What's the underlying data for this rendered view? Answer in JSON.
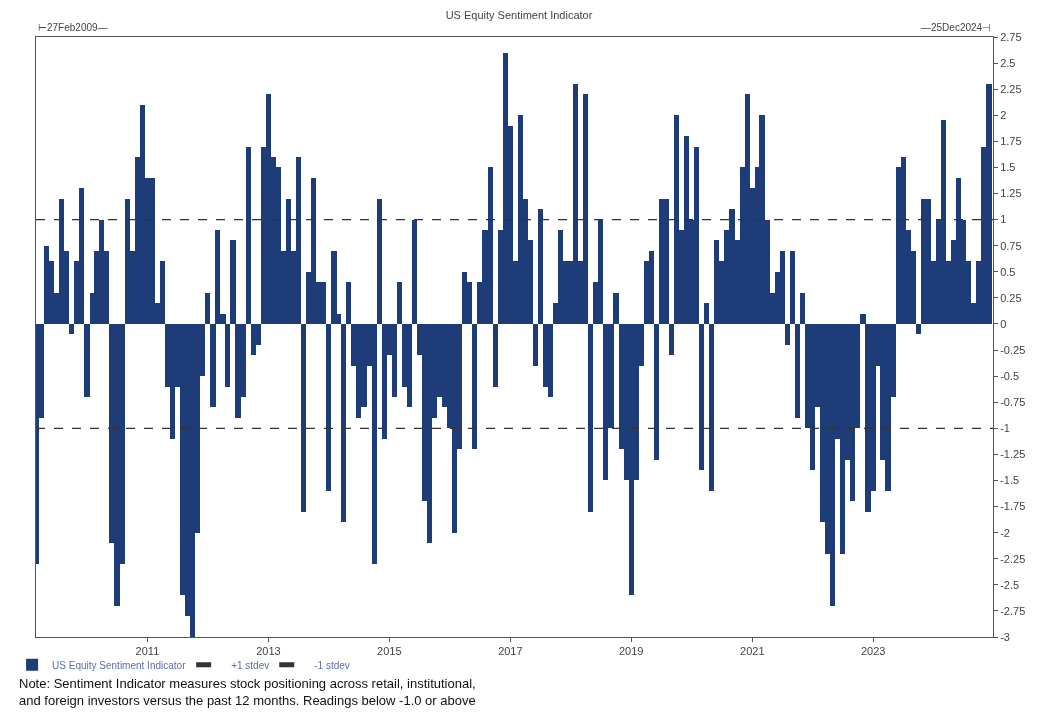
{
  "chart_data": {
    "type": "bar",
    "title": "US Equity Sentiment Indicator",
    "x": [
      "2009-03",
      "2009-04",
      "2009-05",
      "2009-06",
      "2009-07",
      "2009-08",
      "2009-09",
      "2009-10",
      "2009-11",
      "2009-12",
      "2010-01",
      "2010-02",
      "2010-03",
      "2010-04",
      "2010-05",
      "2010-06",
      "2010-07",
      "2010-08",
      "2010-09",
      "2010-10",
      "2010-11",
      "2010-12",
      "2011-01",
      "2011-02",
      "2011-03",
      "2011-04",
      "2011-05",
      "2011-06",
      "2011-07",
      "2011-08",
      "2011-09",
      "2011-10",
      "2011-11",
      "2011-12",
      "2012-01",
      "2012-02",
      "2012-03",
      "2012-04",
      "2012-05",
      "2012-06",
      "2012-07",
      "2012-08",
      "2012-09",
      "2012-10",
      "2012-11",
      "2012-12",
      "2013-01",
      "2013-02",
      "2013-03",
      "2013-04",
      "2013-05",
      "2013-06",
      "2013-07",
      "2013-08",
      "2013-09",
      "2013-10",
      "2013-11",
      "2013-12",
      "2014-01",
      "2014-02",
      "2014-03",
      "2014-04",
      "2014-05",
      "2014-06",
      "2014-07",
      "2014-08",
      "2014-09",
      "2014-10",
      "2014-11",
      "2014-12",
      "2015-01",
      "2015-02",
      "2015-03",
      "2015-04",
      "2015-05",
      "2015-06",
      "2015-07",
      "2015-08",
      "2015-09",
      "2015-10",
      "2015-11",
      "2015-12",
      "2016-01",
      "2016-02",
      "2016-03",
      "2016-04",
      "2016-05",
      "2016-06",
      "2016-07",
      "2016-08",
      "2016-09",
      "2016-10",
      "2016-11",
      "2016-12",
      "2017-01",
      "2017-02",
      "2017-03",
      "2017-04",
      "2017-05",
      "2017-06",
      "2017-07",
      "2017-08",
      "2017-09",
      "2017-10",
      "2017-11",
      "2017-12",
      "2018-01",
      "2018-02",
      "2018-03",
      "2018-04",
      "2018-05",
      "2018-06",
      "2018-07",
      "2018-08",
      "2018-09",
      "2018-10",
      "2018-11",
      "2018-12",
      "2019-01",
      "2019-02",
      "2019-03",
      "2019-04",
      "2019-05",
      "2019-06",
      "2019-07",
      "2019-08",
      "2019-09",
      "2019-10",
      "2019-11",
      "2019-12",
      "2020-01",
      "2020-02",
      "2020-03",
      "2020-04",
      "2020-05",
      "2020-06",
      "2020-07",
      "2020-08",
      "2020-09",
      "2020-10",
      "2020-11",
      "2020-12",
      "2021-01",
      "2021-02",
      "2021-03",
      "2021-04",
      "2021-05",
      "2021-06",
      "2021-07",
      "2021-08",
      "2021-09",
      "2021-10",
      "2021-11",
      "2021-12",
      "2022-01",
      "2022-02",
      "2022-03",
      "2022-04",
      "2022-05",
      "2022-06",
      "2022-07",
      "2022-08",
      "2022-09",
      "2022-10",
      "2022-11",
      "2022-12",
      "2023-01",
      "2023-02",
      "2023-03",
      "2023-04",
      "2023-05",
      "2023-06",
      "2023-07",
      "2023-08",
      "2023-09",
      "2023-10",
      "2023-11",
      "2023-12",
      "2024-01",
      "2024-02",
      "2024-03",
      "2024-04",
      "2024-05",
      "2024-06",
      "2024-07",
      "2024-08",
      "2024-09",
      "2024-10",
      "2024-11",
      "2024-12"
    ],
    "series": [
      {
        "name": "US Equity Sentiment Indicator",
        "color": "#1d3c78",
        "values": [
          -2.3,
          -0.9,
          0.75,
          0.6,
          0.3,
          1.2,
          0.7,
          -0.1,
          0.6,
          1.3,
          -0.7,
          0.3,
          0.7,
          1.0,
          0.7,
          -2.1,
          -2.7,
          -2.3,
          1.2,
          0.7,
          1.6,
          2.1,
          1.4,
          1.4,
          0.2,
          0.6,
          -0.6,
          -1.1,
          -0.6,
          -2.6,
          -2.8,
          -3.0,
          -2.0,
          -0.5,
          0.3,
          -0.8,
          0.9,
          0.1,
          -0.6,
          0.8,
          -0.9,
          -0.7,
          1.7,
          -0.3,
          -0.2,
          1.7,
          2.2,
          1.6,
          1.5,
          0.7,
          1.2,
          0.7,
          1.6,
          -1.8,
          0.5,
          1.4,
          0.4,
          0.4,
          -1.6,
          0.7,
          0.1,
          -1.9,
          0.4,
          -0.4,
          -0.9,
          -0.8,
          -0.4,
          -2.3,
          1.2,
          -1.1,
          -0.3,
          -0.7,
          0.4,
          -0.6,
          -0.8,
          1.0,
          -0.3,
          -1.7,
          -2.1,
          -0.9,
          -0.7,
          -0.8,
          -1.0,
          -2.0,
          -1.2,
          0.5,
          0.4,
          -1.2,
          0.4,
          0.9,
          1.5,
          -0.6,
          0.9,
          2.6,
          1.9,
          0.6,
          2.0,
          1.2,
          0.8,
          -0.4,
          1.1,
          -0.6,
          -0.7,
          0.2,
          0.9,
          0.6,
          0.6,
          2.3,
          0.6,
          2.2,
          -1.8,
          0.4,
          1.0,
          -1.5,
          -1.0,
          0.3,
          -1.2,
          -1.5,
          -2.6,
          -1.5,
          -0.4,
          0.6,
          0.7,
          -1.3,
          1.2,
          1.2,
          -0.3,
          2.0,
          0.9,
          1.8,
          1.0,
          1.7,
          -1.4,
          0.2,
          -1.6,
          0.8,
          0.6,
          0.9,
          1.1,
          0.8,
          1.5,
          2.2,
          1.3,
          1.5,
          2.0,
          1.0,
          0.3,
          0.5,
          0.7,
          -0.2,
          0.7,
          -0.9,
          0.3,
          -1.0,
          -1.4,
          -0.8,
          -1.9,
          -2.2,
          -2.7,
          -1.1,
          -2.2,
          -1.3,
          -1.7,
          -1.0,
          0.1,
          -1.8,
          -1.6,
          -0.4,
          -1.3,
          -1.6,
          -0.7,
          1.5,
          1.6,
          0.9,
          0.7,
          -0.1,
          1.2,
          1.2,
          0.6,
          1.0,
          1.95,
          0.6,
          0.8,
          1.4,
          1.0,
          0.6,
          0.2,
          0.6,
          1.7,
          2.3
        ]
      }
    ],
    "xlim": [
      "2009-02-27",
      "2024-12-25"
    ],
    "xticks": [
      "2011",
      "2013",
      "2015",
      "2017",
      "2019",
      "2021",
      "2023"
    ],
    "ylim": [
      -3,
      2.75
    ],
    "yticks": [
      2.75,
      2.5,
      2.25,
      2,
      1.75,
      1.5,
      1.25,
      1,
      0.75,
      0.5,
      0.25,
      0,
      -0.25,
      -0.5,
      -0.75,
      -1,
      -1.25,
      -1.5,
      -1.75,
      -2,
      -2.25,
      -2.5,
      -2.75,
      -3
    ],
    "ref_lines": [
      {
        "axis": "y",
        "value": 1,
        "label": "+1 stdev",
        "color": "#333333",
        "line_style": "dashed"
      },
      {
        "axis": "y",
        "value": -1,
        "label": "-1 stdev",
        "color": "#333333",
        "line_style": "dashed"
      }
    ],
    "grid": false,
    "legend": "bottom left",
    "annotations": [
      "⊢27Feb2009—",
      "—25Dec2024⊣",
      "Note: Sentiment Indicator measures stock positioning across retail, institutional,\nand foreign investors versus the past 12 months. Readings below -1.0 or above"
    ]
  }
}
